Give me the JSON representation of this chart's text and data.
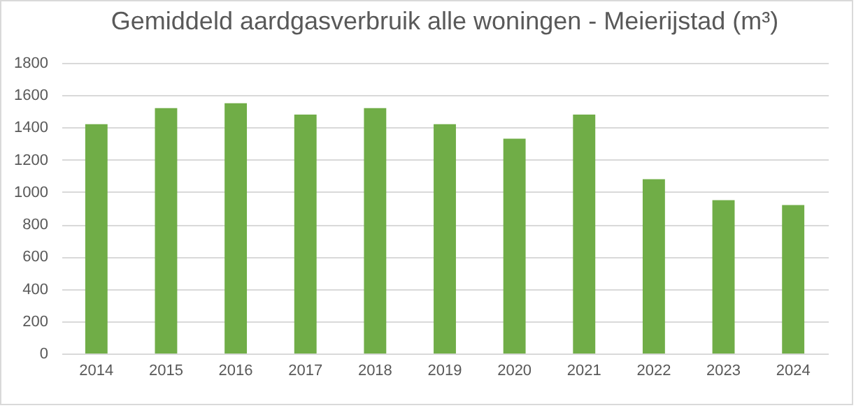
{
  "chart_data": {
    "type": "bar",
    "title": "Gemiddeld aardgasverbruik alle woningen - Meierijstad (m³)",
    "categories": [
      "2014",
      "2015",
      "2016",
      "2017",
      "2018",
      "2019",
      "2020",
      "2021",
      "2022",
      "2023",
      "2024"
    ],
    "values": [
      1420,
      1520,
      1550,
      1480,
      1520,
      1420,
      1330,
      1480,
      1080,
      950,
      920
    ],
    "color": "#70ad47",
    "ylim": [
      0,
      1800
    ],
    "yticks": [
      0,
      200,
      400,
      600,
      800,
      1000,
      1200,
      1400,
      1600,
      1800
    ],
    "grid": "y"
  }
}
